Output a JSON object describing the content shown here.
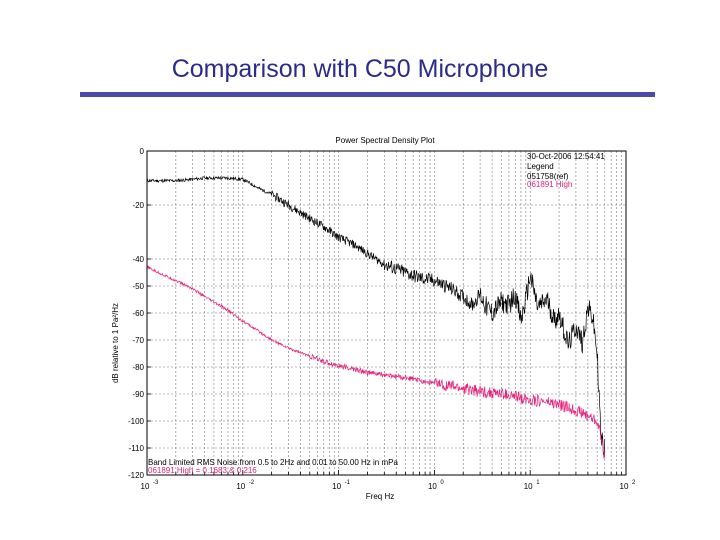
{
  "slide": {
    "title": "Comparison with C50 Microphone"
  },
  "chart_data": {
    "type": "line",
    "title": "Power Spectral Density Plot",
    "xlabel": "Freq Hz",
    "ylabel": "dB relative to 1 Pa²/Hz",
    "xscale": "log",
    "xlim": [
      0.001,
      100
    ],
    "ylim": [
      -120,
      0
    ],
    "grid": true,
    "x_ticks": [
      0.001,
      0.01,
      0.1,
      1,
      10,
      100
    ],
    "x_tick_labels": [
      {
        "base": "10",
        "exp": "-3"
      },
      {
        "base": "10",
        "exp": "-2"
      },
      {
        "base": "10",
        "exp": "-1"
      },
      {
        "base": "10",
        "exp": "0"
      },
      {
        "base": "10",
        "exp": "1"
      },
      {
        "base": "10",
        "exp": "2"
      }
    ],
    "y_ticks": [
      0,
      -20,
      -40,
      -50,
      -60,
      -70,
      -80,
      -90,
      -100,
      -110,
      -120
    ],
    "y_tick_labels": [
      "0",
      "-20",
      "-40",
      "-50",
      "-60",
      "-70",
      "-80",
      "-90",
      "-100",
      "-110",
      "-120"
    ],
    "legend": {
      "timestamp": "30-Oct-2006 12:54:41",
      "heading": "Legend",
      "entries": [
        "051758(ref)",
        "061891 High"
      ]
    },
    "series": [
      {
        "name": "051758(ref)",
        "color": "#000000",
        "x": [
          0.001,
          0.0015,
          0.002,
          0.003,
          0.004,
          0.005,
          0.007,
          0.01,
          0.012,
          0.015,
          0.02,
          0.03,
          0.05,
          0.07,
          0.1,
          0.15,
          0.2,
          0.3,
          0.5,
          0.7,
          1.0,
          1.5,
          2.0,
          2.5,
          3.0,
          3.5,
          4.0,
          5.0,
          6.0,
          7.0,
          8.0,
          9.0,
          10.0,
          12.0,
          15.0,
          18.0,
          20.0,
          25.0,
          30.0,
          35.0,
          40.0,
          45.0,
          50.0,
          55.0,
          60.0
        ],
        "y": [
          -11,
          -11,
          -11,
          -10.5,
          -10,
          -10,
          -10,
          -10.5,
          -12,
          -14,
          -16,
          -20,
          -25,
          -28,
          -32,
          -35,
          -38,
          -42,
          -45,
          -47,
          -48,
          -51,
          -54,
          -57,
          -53,
          -58,
          -60,
          -56,
          -57,
          -53,
          -63,
          -55,
          -46,
          -58,
          -55,
          -63,
          -60,
          -72,
          -65,
          -71,
          -58,
          -62,
          -75,
          -107,
          -110
        ]
      },
      {
        "name": "061891 High",
        "color": "#e8207a",
        "x": [
          0.001,
          0.0015,
          0.002,
          0.003,
          0.004,
          0.005,
          0.007,
          0.01,
          0.015,
          0.02,
          0.03,
          0.05,
          0.07,
          0.1,
          0.15,
          0.2,
          0.3,
          0.5,
          0.7,
          1.0,
          1.5,
          2.0,
          3.0,
          5.0,
          7.0,
          10.0,
          15.0,
          20.0,
          30.0,
          40.0,
          50.0,
          55.0,
          60.0
        ],
        "y": [
          -43,
          -46,
          -48,
          -51,
          -54,
          -56,
          -59,
          -63,
          -67,
          -70,
          -73,
          -76,
          -78,
          -79.5,
          -81,
          -82,
          -83,
          -84,
          -85,
          -86,
          -87,
          -88,
          -89,
          -90,
          -91,
          -92,
          -93,
          -94,
          -96,
          -98,
          -100,
          -106,
          -113
        ]
      }
    ],
    "annotation": {
      "line1": "Band Limited RMS Noise from 0.5 to 2Hz and 0.01 to 50.00 Hz in mPa",
      "line2": "061891 High = 0.1683 & 0.216"
    }
  }
}
